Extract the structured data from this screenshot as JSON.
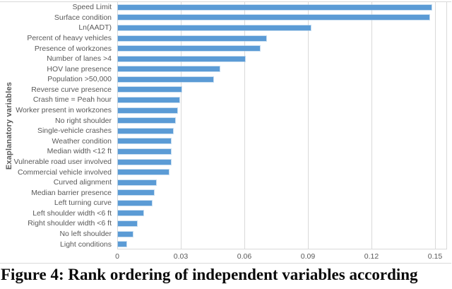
{
  "figure": {
    "caption": "Figure 4: Rank ordering of independent variables according"
  },
  "colors": {
    "bar": "#5b9bd5",
    "gridline": "#d9d9d9",
    "axis_text": "#595959"
  },
  "chart_data": {
    "type": "bar",
    "orientation": "horizontal",
    "title": "",
    "xlabel": "",
    "ylabel": "Exaplanatory variables",
    "xlim": [
      0,
      0.15
    ],
    "x_ticks": [
      0,
      0.03,
      0.06,
      0.09,
      0.12,
      0.15
    ],
    "x_tick_labels": [
      "0",
      "0.03",
      "0.06",
      "0.09",
      "0.12",
      "0.15"
    ],
    "grid": "vertical",
    "legend": "none",
    "categories": [
      "Speed Limit",
      "Surface condition",
      "Ln(AADT)",
      "Percent of heavy vehicles",
      "Presence of workzones",
      "Number of lanes >4",
      "HOV lane presence",
      "Population >50,000",
      "Reverse curve presence",
      "Crash time = Peah hour",
      "Worker present in workzones",
      "No right shoulder",
      "Single-vehicle crashes",
      "Weather condition",
      "Median width <12 ft",
      "Vulnerable road user involved",
      "Commercial vehicle involved",
      "Curved alignment",
      "Median barrier presence",
      "Left turning curve",
      "Left shoulder width <6 ft",
      "Right shoulder width <6 ft",
      "No left shoulder",
      "Light conditions"
    ],
    "values": [
      0.148,
      0.147,
      0.091,
      0.07,
      0.067,
      0.06,
      0.048,
      0.045,
      0.03,
      0.029,
      0.028,
      0.027,
      0.026,
      0.025,
      0.025,
      0.025,
      0.024,
      0.018,
      0.017,
      0.016,
      0.012,
      0.009,
      0.007,
      0.004
    ]
  }
}
